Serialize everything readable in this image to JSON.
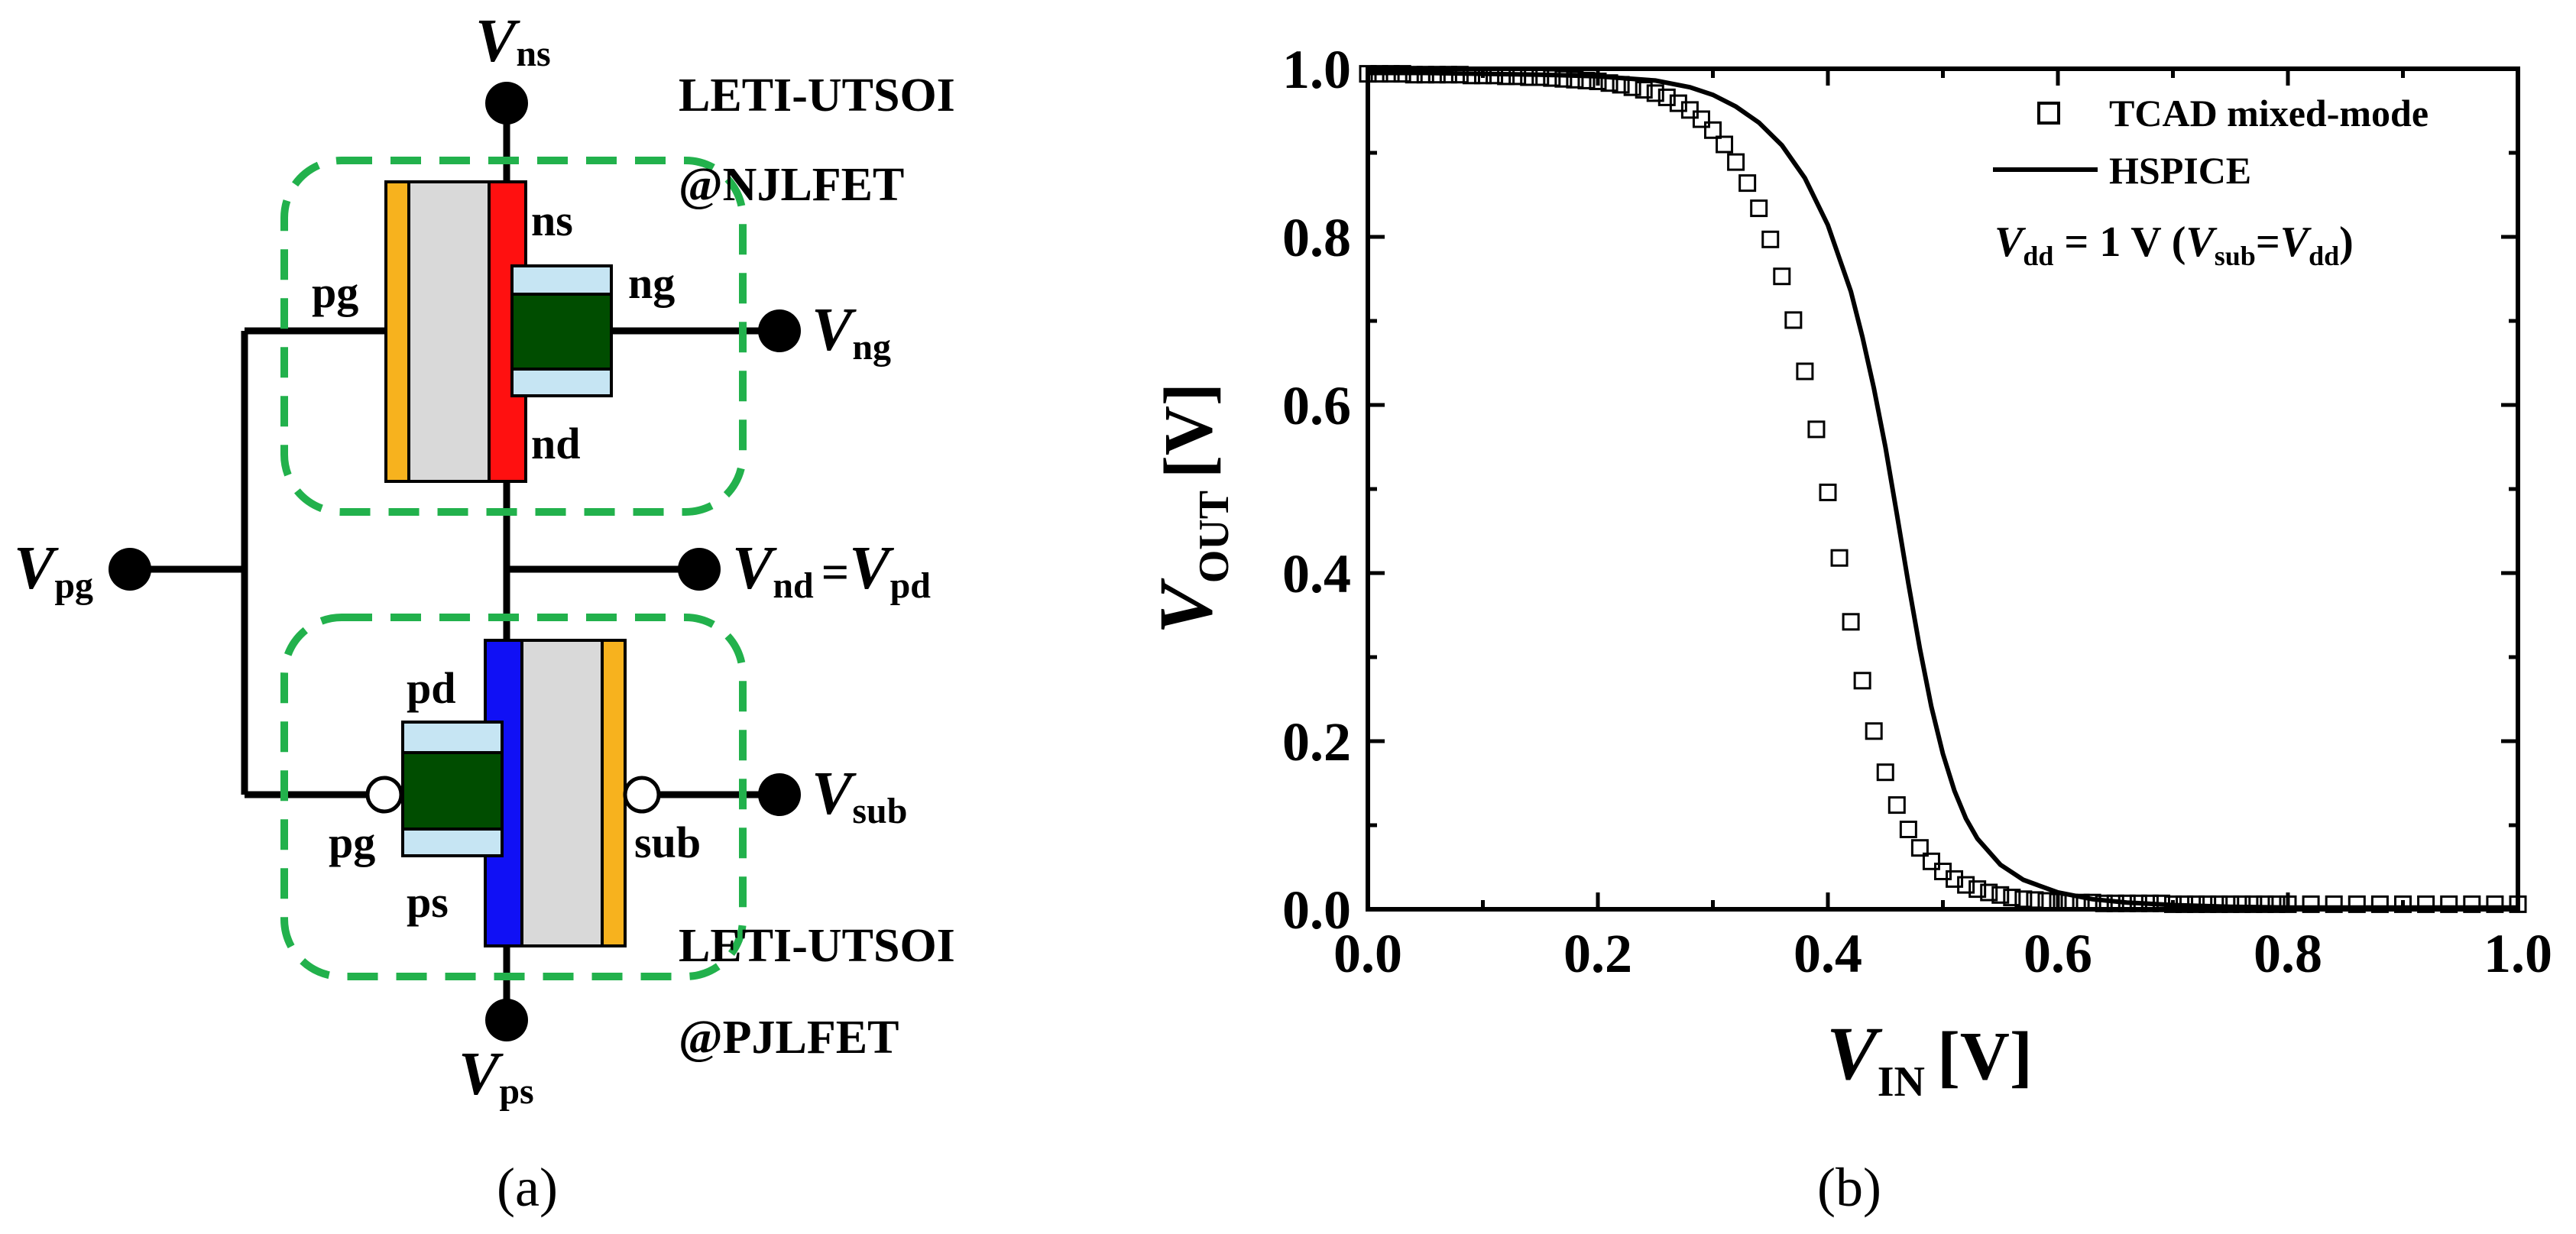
{
  "colors": {
    "gate_orange": "#F7B21E",
    "body_gray": "#D9D9D9",
    "n_channel_red": "#FF1010",
    "p_channel_blue": "#1010F5",
    "gate_green": "#004D00",
    "gate_lightblue": "#C6E5F3",
    "dash_green": "#22B14C"
  },
  "panel_a": {
    "caption": "(a)",
    "njl_title_1": "LETI-UTSOI",
    "njl_title_2": "@NJLFET",
    "pjl_title_1": "LETI-UTSOI",
    "pjl_title_2": "@PJLFET",
    "v_ns": {
      "main": "V",
      "sub": "ns"
    },
    "v_ng": {
      "main": "V",
      "sub": "ng"
    },
    "v_pg": {
      "main": "V",
      "sub": "pg"
    },
    "v_nd": {
      "main": "V",
      "sub": "nd"
    },
    "v_nd_eq": "=",
    "v_pd": {
      "main": "V",
      "sub": "pd"
    },
    "v_sub": {
      "main": "V",
      "sub": "sub"
    },
    "v_ps": {
      "main": "V",
      "sub": "ps"
    },
    "term_ns": "ns",
    "term_pg_top": "pg",
    "term_ng": "ng",
    "term_nd": "nd",
    "term_pd": "pd",
    "term_pg_bot": "pg",
    "term_sub": "sub",
    "term_ps": "ps"
  },
  "chart_data": {
    "type": "line",
    "caption": "(b)",
    "title": "",
    "xlabel": {
      "main": "V",
      "sub": "IN",
      "unit": "[V]"
    },
    "ylabel": {
      "main": "V",
      "sub": "OUT",
      "unit": "[V]"
    },
    "xlim": [
      0.0,
      1.0
    ],
    "ylim": [
      0.0,
      1.0
    ],
    "xticks": [
      "0.0",
      "0.2",
      "0.4",
      "0.6",
      "0.8",
      "1.0"
    ],
    "yticks": [
      "0.0",
      "0.2",
      "0.4",
      "0.6",
      "0.8",
      "1.0"
    ],
    "grid": false,
    "legend_position": "top-right",
    "legend": {
      "tcad": "TCAD mixed-mode",
      "hspice": "HSPICE",
      "cond_v": "V",
      "cond_dd": "dd",
      "cond_mid": " = 1 V (",
      "cond_v2": "V",
      "cond_sub": "sub",
      "cond_eq": "=",
      "cond_v3": "V",
      "cond_dd2": "dd",
      "cond_close": ")"
    },
    "series": [
      {
        "name": "TCAD mixed-mode",
        "style": "open-square",
        "x": [
          0.0,
          0.01,
          0.02,
          0.03,
          0.04,
          0.05,
          0.06,
          0.07,
          0.08,
          0.09,
          0.1,
          0.11,
          0.12,
          0.13,
          0.14,
          0.15,
          0.16,
          0.17,
          0.18,
          0.19,
          0.2,
          0.21,
          0.22,
          0.23,
          0.24,
          0.25,
          0.26,
          0.27,
          0.28,
          0.29,
          0.3,
          0.31,
          0.32,
          0.33,
          0.34,
          0.35,
          0.36,
          0.37,
          0.38,
          0.39,
          0.4,
          0.41,
          0.42,
          0.43,
          0.44,
          0.45,
          0.46,
          0.47,
          0.48,
          0.49,
          0.5,
          0.51,
          0.52,
          0.53,
          0.54,
          0.55,
          0.56,
          0.57,
          0.58,
          0.59,
          0.6,
          0.61,
          0.62,
          0.63,
          0.64,
          0.65,
          0.66,
          0.67,
          0.68,
          0.69,
          0.7,
          0.71,
          0.72,
          0.73,
          0.74,
          0.75,
          0.76,
          0.77,
          0.78,
          0.79,
          0.8,
          0.82,
          0.84,
          0.86,
          0.88,
          0.9,
          0.92,
          0.94,
          0.96,
          0.98,
          1.0
        ],
        "y": [
          0.994,
          0.994,
          0.994,
          0.994,
          0.993,
          0.993,
          0.993,
          0.993,
          0.993,
          0.992,
          0.992,
          0.992,
          0.991,
          0.991,
          0.99,
          0.99,
          0.989,
          0.988,
          0.987,
          0.986,
          0.985,
          0.983,
          0.981,
          0.978,
          0.975,
          0.971,
          0.966,
          0.959,
          0.951,
          0.94,
          0.927,
          0.91,
          0.889,
          0.864,
          0.834,
          0.797,
          0.753,
          0.701,
          0.64,
          0.571,
          0.496,
          0.418,
          0.342,
          0.272,
          0.212,
          0.163,
          0.124,
          0.095,
          0.073,
          0.057,
          0.045,
          0.036,
          0.029,
          0.024,
          0.02,
          0.017,
          0.014,
          0.012,
          0.011,
          0.01,
          0.009,
          0.008,
          0.008,
          0.008,
          0.007,
          0.007,
          0.007,
          0.007,
          0.007,
          0.007,
          0.006,
          0.006,
          0.006,
          0.006,
          0.006,
          0.006,
          0.006,
          0.006,
          0.006,
          0.006,
          0.006,
          0.006,
          0.006,
          0.006,
          0.006,
          0.006,
          0.006,
          0.006,
          0.006,
          0.006,
          0.006
        ]
      },
      {
        "name": "HSPICE",
        "style": "solid-line",
        "x": [
          0.0,
          0.05,
          0.1,
          0.15,
          0.2,
          0.25,
          0.28,
          0.3,
          0.32,
          0.34,
          0.36,
          0.38,
          0.4,
          0.42,
          0.43,
          0.44,
          0.45,
          0.46,
          0.47,
          0.48,
          0.49,
          0.5,
          0.51,
          0.52,
          0.53,
          0.55,
          0.57,
          0.6,
          0.63,
          0.66,
          0.7,
          0.75,
          0.8,
          0.85,
          0.9,
          0.95,
          1.0
        ],
        "y": [
          0.995,
          0.995,
          0.994,
          0.993,
          0.991,
          0.986,
          0.978,
          0.969,
          0.955,
          0.936,
          0.909,
          0.87,
          0.814,
          0.735,
          0.681,
          0.62,
          0.55,
          0.47,
          0.388,
          0.31,
          0.241,
          0.185,
          0.141,
          0.108,
          0.084,
          0.053,
          0.035,
          0.02,
          0.012,
          0.008,
          0.005,
          0.003,
          0.002,
          0.002,
          0.002,
          0.002,
          0.002
        ]
      }
    ]
  }
}
